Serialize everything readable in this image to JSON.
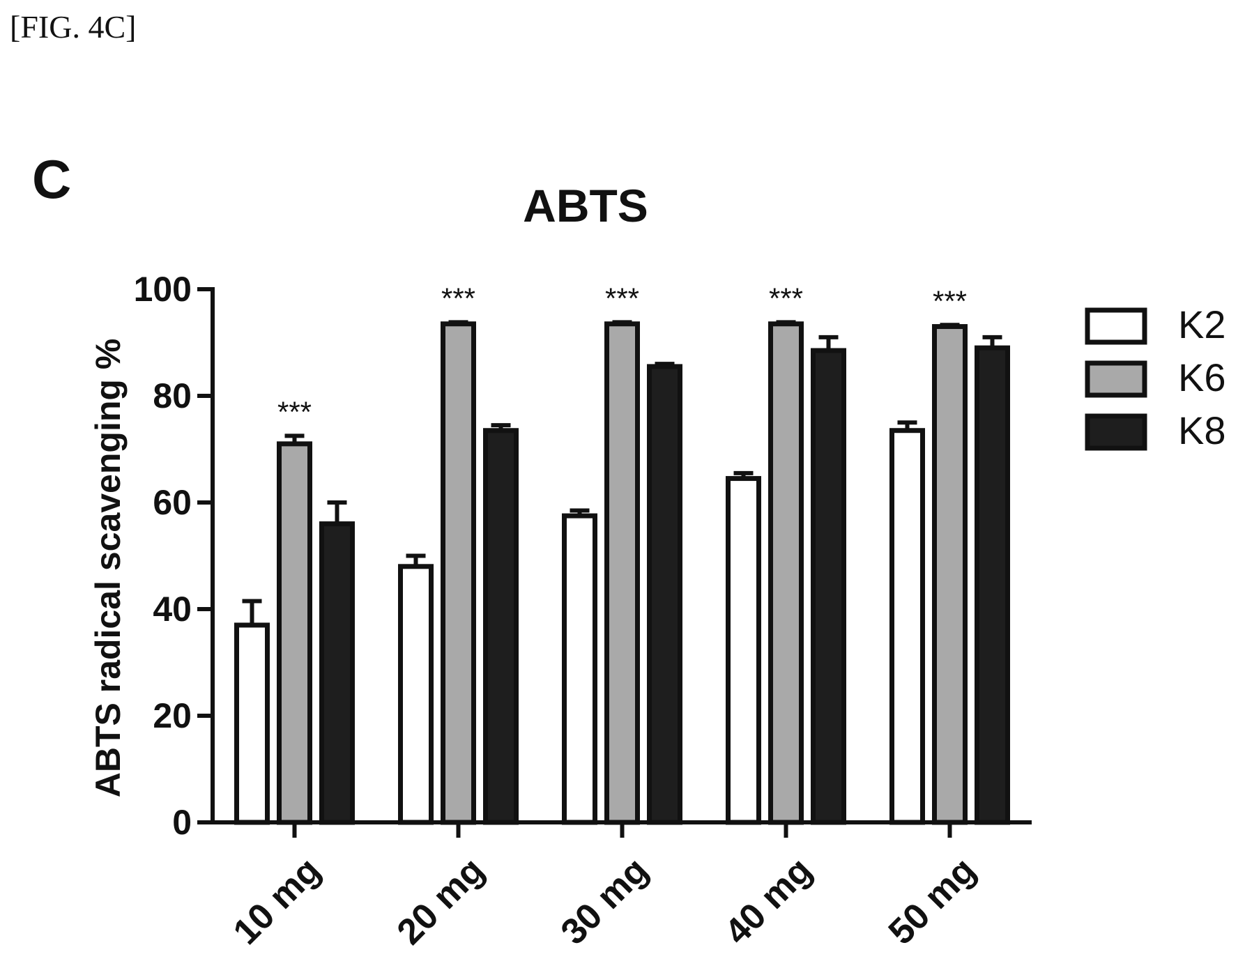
{
  "figure_label": "[FIG. 4C]",
  "panel_letter": "C",
  "colors": {
    "K2": "#ffffff",
    "K6": "#a9a9a9",
    "K8": "#1e1e1e",
    "stroke": "#111111"
  },
  "chart_data": {
    "type": "bar",
    "title": "ABTS",
    "xlabel": "",
    "ylabel": "ABTS radical scavenging %",
    "ylim": [
      0,
      100
    ],
    "yticks": [
      0,
      20,
      40,
      60,
      80,
      100
    ],
    "categories": [
      "10 mg",
      "20 mg",
      "30 mg",
      "40 mg",
      "50 mg"
    ],
    "series": [
      {
        "name": "K2",
        "values": [
          37,
          48,
          57.5,
          64.5,
          73.5
        ],
        "errors": [
          4.5,
          2,
          1,
          1,
          1.5
        ]
      },
      {
        "name": "K6",
        "values": [
          71,
          93.5,
          93.5,
          93.5,
          93
        ],
        "errors": [
          1.5,
          0.3,
          0.3,
          0.3,
          0.3
        ]
      },
      {
        "name": "K8",
        "values": [
          56,
          73.5,
          85.5,
          88.5,
          89
        ],
        "errors": [
          4,
          1,
          0.5,
          2.5,
          2
        ]
      }
    ],
    "annotations": [
      "***",
      "***",
      "***",
      "***",
      "***"
    ],
    "legend_position": "top-right"
  }
}
